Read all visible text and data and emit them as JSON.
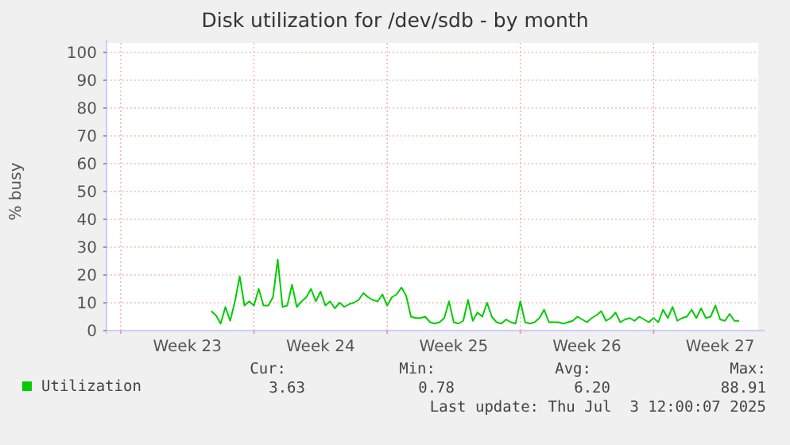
{
  "chart_data": {
    "type": "line",
    "title": "Disk utilization for /dev/sdb - by month",
    "ylabel": "% busy",
    "categories": [
      null,
      null,
      null,
      null,
      null,
      null,
      null,
      null,
      null,
      null,
      null,
      null,
      null,
      null,
      "Week 23",
      null,
      null,
      null,
      null,
      null,
      null,
      null,
      null,
      null,
      null,
      null,
      null,
      null,
      null,
      null,
      null,
      null,
      null,
      null,
      null,
      null,
      null,
      null,
      null,
      null,
      null,
      null,
      "Week 24",
      null,
      null,
      null,
      null,
      null,
      null,
      null,
      null,
      null,
      null,
      null,
      null,
      null,
      null,
      null,
      null,
      null,
      null,
      null,
      null,
      null,
      null,
      null,
      null,
      null,
      null,
      null,
      "Week 25",
      null,
      null,
      null,
      null,
      null,
      null,
      null,
      null,
      null,
      null,
      null,
      null,
      null,
      null,
      null,
      null,
      null,
      null,
      null,
      null,
      null,
      null,
      null,
      null,
      null,
      null,
      null,
      "Week 26",
      null,
      null,
      null,
      null,
      null,
      null,
      null,
      null,
      null,
      null,
      null,
      null,
      null,
      null,
      null,
      null,
      null,
      null,
      null,
      null,
      null,
      null,
      null,
      null,
      null,
      null,
      null,
      "Week 27",
      null,
      null,
      null,
      null,
      null,
      null,
      null
    ],
    "ylim": [
      0,
      100
    ],
    "yticks": [
      0,
      10,
      20,
      30,
      40,
      50,
      60,
      70,
      80,
      90,
      100
    ],
    "grid": true,
    "legend": "bottom left",
    "marker": "none",
    "line_style": "solid",
    "series": [
      {
        "name": "Utilization",
        "color": "#00cc00",
        "values": [
          null,
          null,
          null,
          null,
          null,
          null,
          null,
          null,
          null,
          null,
          null,
          null,
          null,
          null,
          null,
          null,
          null,
          null,
          null,
          7,
          5.5,
          2.5,
          8.5,
          3.5,
          10.5,
          19.5,
          9,
          10.5,
          9,
          15,
          9,
          9,
          12,
          25.5,
          8.5,
          9,
          16.5,
          8.5,
          10.5,
          12,
          15,
          10.5,
          14,
          9,
          10.5,
          8,
          10,
          8.5,
          9.5,
          10,
          11,
          13.5,
          12,
          11,
          10.5,
          13,
          9,
          12,
          13,
          15.5,
          12.5,
          5,
          4.5,
          4.5,
          5,
          3,
          2.5,
          3,
          4.5,
          10.5,
          3,
          2.5,
          3.5,
          11,
          3.5,
          6.5,
          5,
          10,
          5,
          3,
          2.5,
          4,
          3,
          2.5,
          10.5,
          3,
          2.5,
          3,
          4.5,
          7.5,
          3,
          3,
          3,
          2.5,
          3,
          3.5,
          5,
          4,
          3,
          4.5,
          5.5,
          7,
          3.5,
          4.5,
          6.5,
          3,
          4,
          4.5,
          3.5,
          5,
          4,
          3,
          4.5,
          3,
          7.5,
          4.5,
          8.5,
          3.5,
          4.5,
          5,
          7.5,
          4.5,
          8,
          4.5,
          5,
          9,
          4,
          3.5,
          6,
          3.5,
          3.5,
          null,
          null,
          null
        ]
      }
    ],
    "annotations": [
      "Cur:",
      "3.63",
      "Min:",
      "0.78",
      "Avg:",
      "6.20",
      "Max:",
      "88.91",
      "Last update: Thu Jul  3 12:00:07 2025"
    ]
  }
}
